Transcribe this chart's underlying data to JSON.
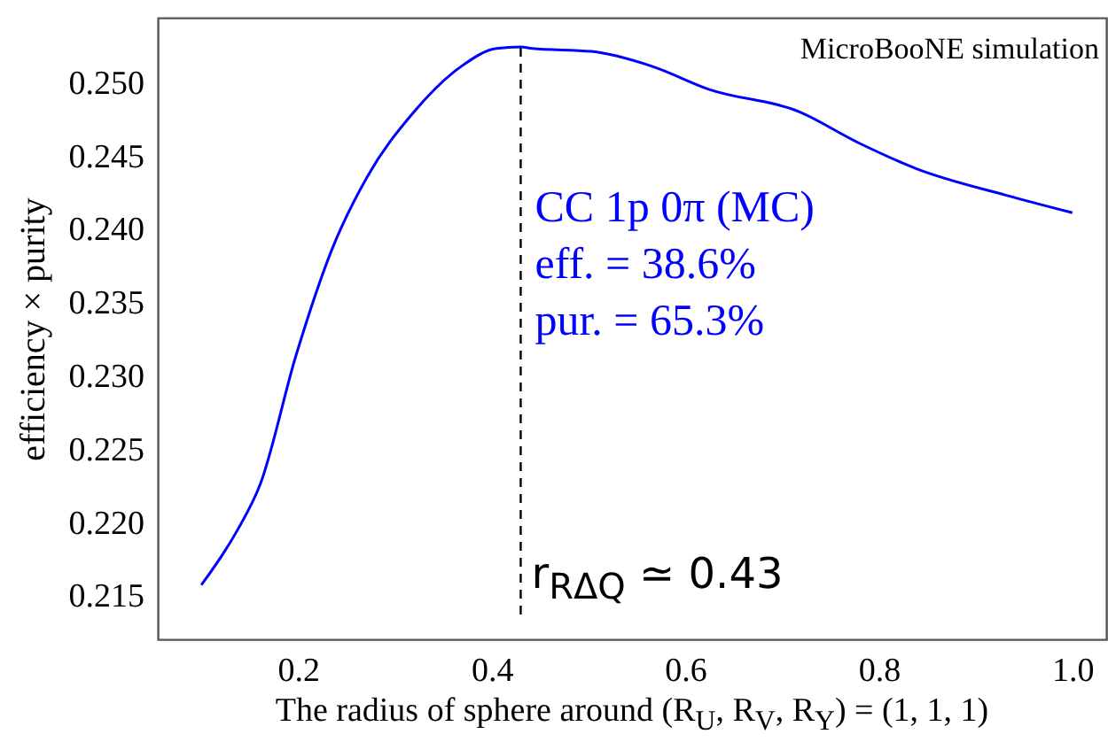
{
  "chart_data": {
    "type": "line",
    "xlabel": "The radius of sphere around (R$_{U}$, R$_{V}$, R$_{Y}$) = (1, 1, 1)",
    "ylabel": "efficiency × purity",
    "annotations": [
      "MicroBooNE simulation",
      "eff. = 38.6%",
      "pur. = 65.3%"
    ],
    "xlim": [
      0.055,
      1.035
    ],
    "ylim": [
      0.212,
      0.2544
    ],
    "xticks": [
      {
        "value": 0.2,
        "label": "0.2"
      },
      {
        "value": 0.4,
        "label": "0.4"
      },
      {
        "value": 0.6,
        "label": "0.6"
      },
      {
        "value": 0.8,
        "label": "0.8"
      },
      {
        "value": 1.0,
        "label": "1.0"
      }
    ],
    "yticks": [
      {
        "value": 0.215,
        "label": "0.215"
      },
      {
        "value": 0.22,
        "label": "0.220"
      },
      {
        "value": 0.225,
        "label": "0.225"
      },
      {
        "value": 0.23,
        "label": "0.230"
      },
      {
        "value": 0.235,
        "label": "0.235"
      },
      {
        "value": 0.24,
        "label": "0.240"
      },
      {
        "value": 0.245,
        "label": "0.245"
      },
      {
        "value": 0.25,
        "label": "0.250"
      }
    ],
    "x": [
      0.1,
      0.136,
      0.161,
      0.198,
      0.235,
      0.271,
      0.32,
      0.369,
      0.405,
      0.43,
      0.442,
      0.503,
      0.565,
      0.625,
      0.717,
      0.778,
      0.839,
      0.931,
      1.0
    ],
    "series": [
      {
        "name": "CC 1p 0π (MC)",
        "color": "#0000ff",
        "values": [
          0.2157,
          0.2193,
          0.2226,
          0.2314,
          0.2386,
          0.2435,
          0.248,
          0.2511,
          0.2523,
          0.2524,
          0.2523,
          0.2521,
          0.2511,
          0.2495,
          0.248,
          0.2459,
          0.2441,
          0.2423,
          0.2411
        ]
      }
    ],
    "ref_lines": [
      {
        "axis": "x",
        "value": 0.43,
        "label": "r$_{RΔQ}$ ≃ 0.43",
        "color": "#000000",
        "line_style": "dashed"
      }
    ],
    "grid": false,
    "marker": "none",
    "line_style": "solid"
  }
}
